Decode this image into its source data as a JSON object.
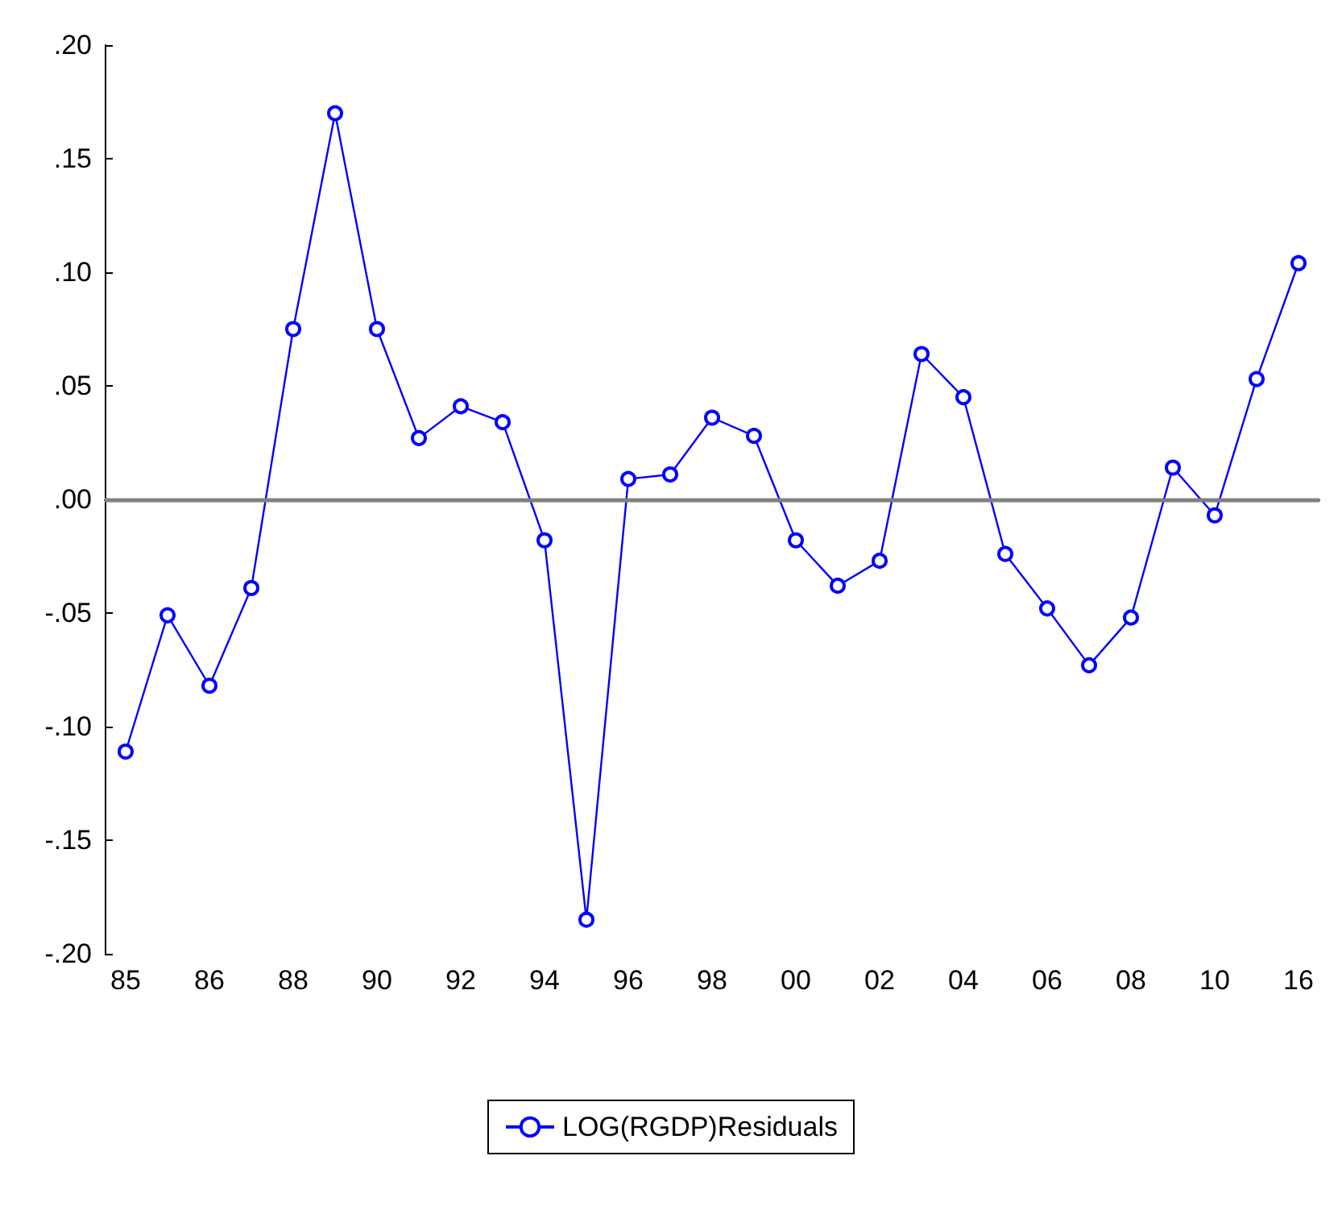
{
  "chart_data": {
    "type": "line",
    "categories": [
      "85",
      null,
      "86",
      null,
      "88",
      null,
      "90",
      null,
      "92",
      null,
      "94",
      null,
      "96",
      null,
      "98",
      null,
      "00",
      null,
      "02",
      null,
      "04",
      null,
      "06",
      null,
      "08",
      null,
      "10",
      null,
      "16"
    ],
    "series": [
      {
        "name": "LOG(RGDP)Residuals",
        "color": "#0000ff",
        "values": [
          -0.111,
          -0.051,
          -0.082,
          -0.039,
          0.075,
          0.17,
          0.075,
          0.027,
          0.041,
          0.034,
          -0.018,
          -0.185,
          0.009,
          0.011,
          0.036,
          0.028,
          -0.018,
          -0.038,
          -0.027,
          0.064,
          0.045,
          -0.024,
          -0.048,
          -0.073,
          -0.052,
          0.014,
          -0.007,
          0.053,
          0.104
        ]
      }
    ],
    "ylim": [
      -0.2,
      0.2
    ],
    "yticks": [
      {
        "value": -0.2,
        "label": "-.20"
      },
      {
        "value": -0.15,
        "label": "-.15"
      },
      {
        "value": -0.1,
        "label": "-.10"
      },
      {
        "value": -0.05,
        "label": "-.05"
      },
      {
        "value": 0,
        "label": ".00"
      },
      {
        "value": 0.05,
        "label": ".05"
      },
      {
        "value": 0.1,
        "label": ".10"
      },
      {
        "value": 0.15,
        "label": ".15"
      },
      {
        "value": 0.2,
        "label": ".20"
      }
    ],
    "ref_lines": [
      {
        "axis": "y",
        "value": 0,
        "color": "#808080"
      }
    ],
    "grid": false,
    "legend": "bottom",
    "marker": "circle",
    "line_style": "solid"
  }
}
